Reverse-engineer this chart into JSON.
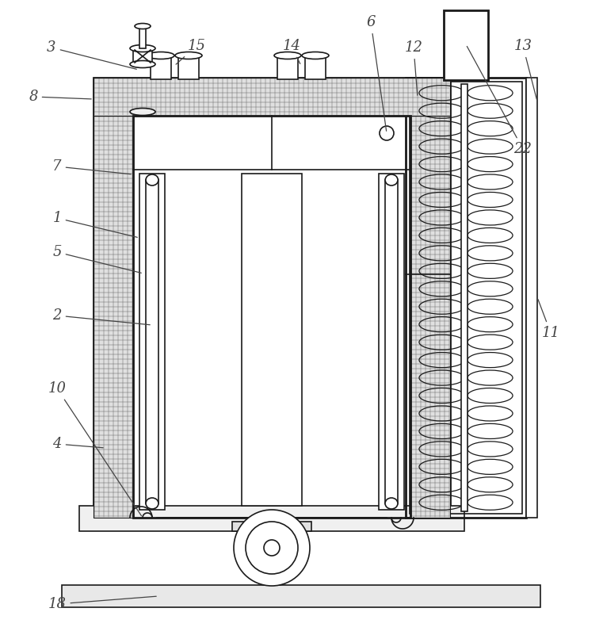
{
  "bg": "#ffffff",
  "lc": "#1a1a1a",
  "lw": 1.2,
  "tlw": 2.0,
  "fig_w": 7.61,
  "fig_h": 8.01,
  "dpi": 100,
  "ann_color": "#444444",
  "ann_fs": 13
}
